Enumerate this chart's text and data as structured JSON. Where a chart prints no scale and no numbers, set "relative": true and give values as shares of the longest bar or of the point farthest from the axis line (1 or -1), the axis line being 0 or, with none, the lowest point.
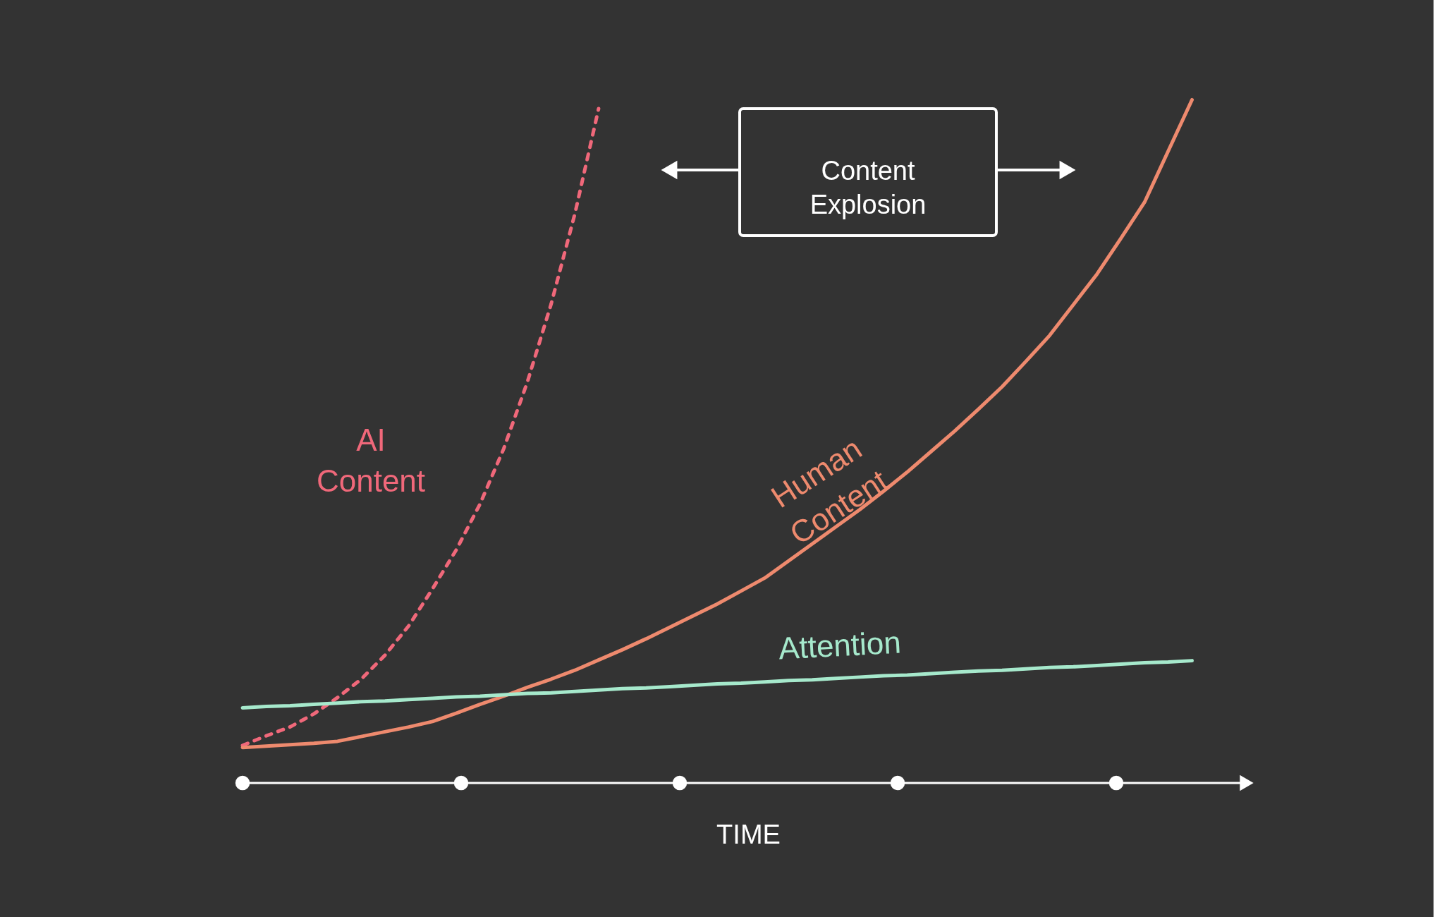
{
  "chart_data": {
    "type": "line",
    "relative": true,
    "xlabel": "TIME",
    "annotations": [
      "Content Explosion"
    ],
    "categories": [
      null,
      null,
      null,
      null,
      null,
      null,
      null,
      null,
      null,
      null,
      null,
      null,
      null,
      null,
      null,
      null,
      null,
      null,
      null,
      null,
      null,
      null,
      null,
      null,
      null,
      null,
      null,
      null,
      null,
      null,
      null,
      null,
      null,
      null,
      null,
      null,
      null,
      null,
      null,
      null,
      null
    ],
    "series": [
      {
        "name": "AI Content",
        "color": "#f0687a",
        "line_style": "dashed",
        "values": [
          0.055,
          0.069,
          0.082,
          0.101,
          0.125,
          0.152,
          0.187,
          0.23,
          0.284,
          0.341,
          0.408,
          0.489,
          0.587,
          0.701,
          0.833,
          0.987,
          null,
          null,
          null,
          null,
          null,
          null,
          null,
          null,
          null,
          null,
          null,
          null,
          null,
          null,
          null,
          null,
          null,
          null,
          null,
          null,
          null,
          null,
          null,
          null,
          null
        ]
      },
      {
        "name": "Human Content",
        "color": "#ee8a6e",
        "line_style": "solid",
        "values": [
          0.052,
          0.054,
          0.056,
          0.058,
          0.061,
          0.068,
          0.075,
          0.082,
          0.09,
          0.102,
          0.115,
          0.127,
          0.14,
          0.152,
          0.165,
          0.18,
          0.195,
          0.211,
          0.228,
          0.245,
          0.262,
          0.281,
          0.3,
          0.325,
          0.35,
          0.375,
          0.4,
          0.427,
          0.455,
          0.485,
          0.515,
          0.547,
          0.58,
          0.617,
          0.655,
          0.7,
          0.745,
          0.797,
          0.85,
          0.925,
          1.0
        ]
      },
      {
        "name": "Attention",
        "color": "#a6e9cc",
        "line_style": "solid",
        "values": [
          0.11,
          0.112,
          0.113,
          0.115,
          0.117,
          0.119,
          0.12,
          0.122,
          0.124,
          0.126,
          0.127,
          0.129,
          0.131,
          0.132,
          0.134,
          0.136,
          0.138,
          0.139,
          0.141,
          0.143,
          0.145,
          0.146,
          0.148,
          0.15,
          0.151,
          0.153,
          0.155,
          0.157,
          0.158,
          0.16,
          0.162,
          0.164,
          0.165,
          0.167,
          0.169,
          0.17,
          0.172,
          0.174,
          0.176,
          0.177,
          0.179
        ]
      }
    ]
  }
}
